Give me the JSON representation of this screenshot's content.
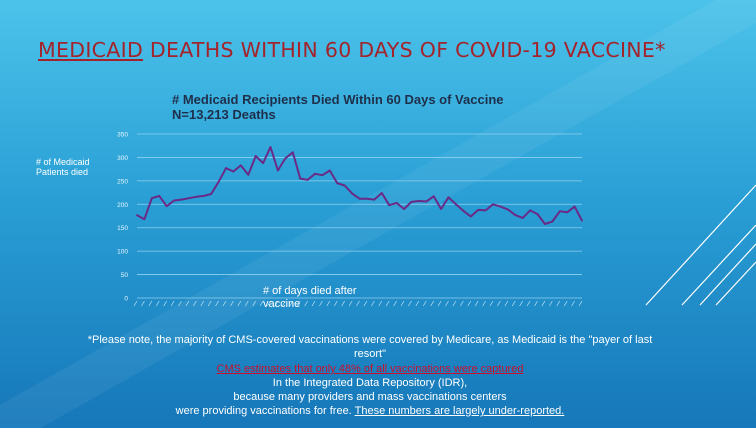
{
  "slide": {
    "title_highlight": "MEDICAID",
    "title_rest": " DEATHS WITHIN 60 DAYS OF COVID-19 VACCINE*"
  },
  "chart_data": {
    "type": "line",
    "title_line1": "# Medicaid Recipients Died Within 60 Days of Vaccine",
    "title_line2": "N=13,213 Deaths",
    "ylabel": "# of Medicaid Patients died",
    "xlabel": "# of days died after vaccine",
    "ylim": [
      0,
      350
    ],
    "yticks": [
      "0",
      "50",
      "100",
      "150",
      "200",
      "250",
      "300",
      "350"
    ],
    "ytick_values": [
      0,
      50,
      100,
      150,
      200,
      250,
      300,
      350
    ],
    "x": [
      1,
      2,
      3,
      4,
      5,
      6,
      7,
      8,
      9,
      10,
      11,
      12,
      13,
      14,
      15,
      16,
      17,
      18,
      19,
      20,
      21,
      22,
      23,
      24,
      25,
      26,
      27,
      28,
      29,
      30,
      31,
      32,
      33,
      34,
      35,
      36,
      37,
      38,
      39,
      40,
      41,
      42,
      43,
      44,
      45,
      46,
      47,
      48,
      49,
      50,
      51,
      52,
      53,
      54,
      55,
      56,
      57,
      58,
      59,
      60,
      61
    ],
    "series": [
      {
        "values": [
          177,
          168,
          213,
          218,
          196,
          208,
          210,
          213,
          216,
          218,
          222,
          248,
          277,
          270,
          283,
          263,
          303,
          288,
          322,
          272,
          298,
          311,
          255,
          252,
          265,
          262,
          272,
          245,
          240,
          223,
          212,
          212,
          210,
          224,
          198,
          203,
          190,
          205,
          207,
          206,
          217,
          190,
          215,
          200,
          186,
          174,
          188,
          187,
          200,
          195,
          189,
          177,
          171,
          187,
          179,
          158,
          163,
          185,
          183,
          195,
          165
        ],
        "color": "#6a2a86"
      }
    ],
    "grid": true,
    "legend": "none"
  },
  "notes": {
    "line1": "*Please note, the majority of CMS-covered vaccinations were covered by Medicare, as Medicaid is the \"payer of last",
    "line2": "resort\"",
    "line3": "CMS estimates that only 48% of all vaccinations were captured",
    "line4": "In the Integrated Data Repository (IDR),",
    "line5": "because many providers and mass vaccinations centers",
    "line6_plain": "were providing vaccinations for free.  ",
    "line6_underlined": "These numbers are largely under-reported."
  },
  "colors": {
    "title_red": "#a3242b",
    "alert_red": "#c8102e",
    "series_purple": "#6a2a86",
    "chart_title_navy": "#1f2f4a"
  }
}
